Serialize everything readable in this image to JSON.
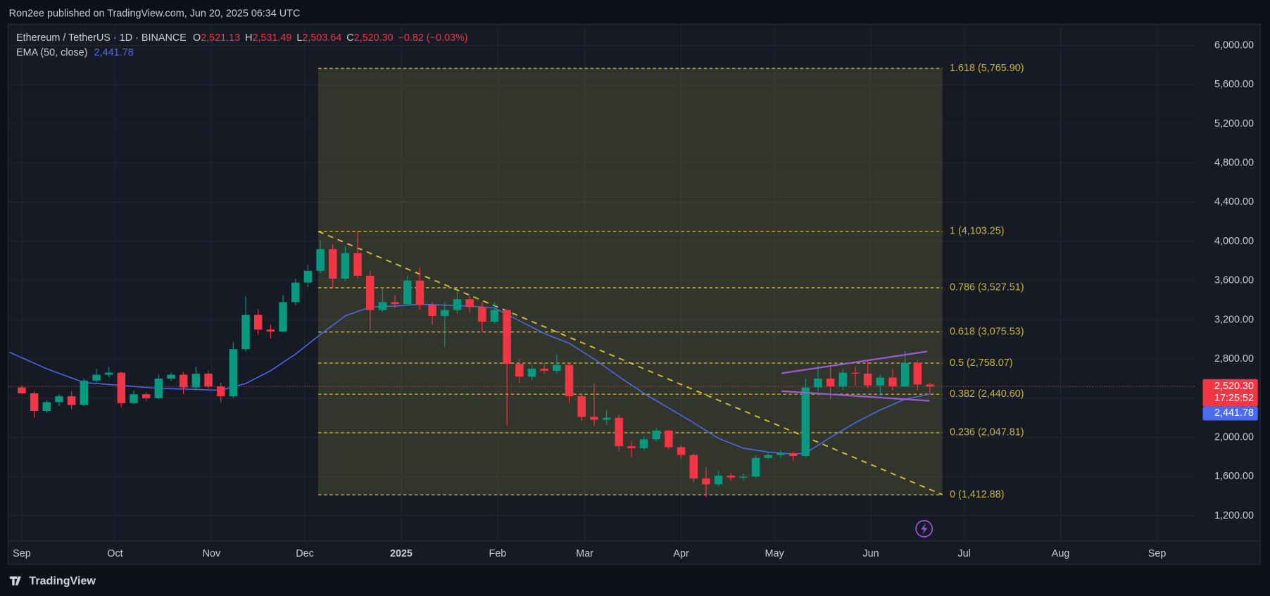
{
  "header": {
    "publisher": "Ron2ee published on TradingView.com, Jun 20, 2025 06:34 UTC",
    "brand": "TradingView"
  },
  "chart_data": {
    "type": "candlestick",
    "legend": {
      "open_label": "O",
      "open": "2,521.13",
      "high_label": "H",
      "high": "2,531.49",
      "low_label": "L",
      "low": "2,503.64",
      "close_label": "C",
      "change": "−0.82 (−0.03%)"
    },
    "xlim": [
      -4.4,
      377.1
    ],
    "xticks": [
      {
        "value": 0,
        "label": "Sep"
      },
      {
        "value": 30,
        "label": "Oct"
      },
      {
        "value": 61,
        "label": "Nov"
      },
      {
        "value": 91,
        "label": "Dec"
      },
      {
        "value": 122,
        "label": "2025"
      },
      {
        "value": 153,
        "label": "Feb"
      },
      {
        "value": 181,
        "label": "Mar"
      },
      {
        "value": 212,
        "label": "Apr"
      },
      {
        "value": 242,
        "label": "May"
      },
      {
        "value": 273,
        "label": "Jun"
      },
      {
        "value": 303,
        "label": "Jul"
      },
      {
        "value": 334,
        "label": "Aug"
      },
      {
        "value": 365,
        "label": "Sep"
      }
    ],
    "ylim": [
      944,
      6215
    ],
    "yticks": [
      {
        "value": 1200,
        "label": "1,200.00"
      },
      {
        "value": 1600,
        "label": "1,600.00"
      },
      {
        "value": 2000,
        "label": "2,000.00"
      },
      {
        "value": 2400,
        "label": "2,400.00"
      },
      {
        "value": 2800,
        "label": "2,800.00"
      },
      {
        "value": 3200,
        "label": "3,200.00"
      },
      {
        "value": 3600,
        "label": "3,600.00"
      },
      {
        "value": 4000,
        "label": "4,000.00"
      },
      {
        "value": 4400,
        "label": "4,400.00"
      },
      {
        "value": 4800,
        "label": "4,800.00"
      },
      {
        "value": 5200,
        "label": "5,200.00"
      },
      {
        "value": 5600,
        "label": "5,600.00"
      },
      {
        "value": 6000,
        "label": "6,000.00"
      }
    ],
    "grid": true,
    "candles": {
      "name": "Ethereum / TetherUS · 1D · BINANCE",
      "up_color": "#089981",
      "down_color": "#f23645",
      "x": [
        0,
        4,
        8,
        12,
        16,
        20,
        24,
        28,
        32,
        36,
        40,
        44,
        48,
        52,
        56,
        60,
        64,
        68,
        72,
        76,
        80,
        84,
        88,
        92,
        96,
        100,
        104,
        108,
        112,
        116,
        120,
        124,
        128,
        132,
        136,
        140,
        144,
        148,
        152,
        156,
        160,
        164,
        168,
        172,
        176,
        180,
        184,
        188,
        192,
        196,
        200,
        204,
        208,
        212,
        216,
        220,
        224,
        228,
        232,
        236,
        240,
        244,
        248,
        252,
        256,
        260,
        264,
        268,
        272,
        276,
        280,
        284,
        288,
        292
      ],
      "open": [
        2510,
        2450,
        2270,
        2360,
        2420,
        2330,
        2580,
        2640,
        2660,
        2350,
        2440,
        2400,
        2600,
        2640,
        2510,
        2650,
        2520,
        2420,
        2900,
        3250,
        3100,
        3080,
        3380,
        3580,
        3700,
        3920,
        3620,
        3880,
        3650,
        3300,
        3380,
        3360,
        3600,
        3350,
        3240,
        3300,
        3410,
        3330,
        3180,
        3300,
        2750,
        2620,
        2700,
        2680,
        2740,
        2420,
        2210,
        2180,
        2200,
        1910,
        1890,
        1980,
        2070,
        1900,
        1820,
        1580,
        1520,
        1610,
        1590,
        1600,
        1790,
        1820,
        1840,
        1810,
        2510,
        2600,
        2520,
        2660,
        2650,
        2530,
        2610,
        2520,
        2760,
        2540
      ],
      "high": [
        2530,
        2470,
        2380,
        2440,
        2470,
        2600,
        2700,
        2720,
        2670,
        2480,
        2460,
        2640,
        2660,
        2670,
        2720,
        2680,
        2560,
        2970,
        3440,
        3310,
        3150,
        3450,
        3620,
        3760,
        4010,
        3970,
        3950,
        4107,
        3700,
        3530,
        3450,
        3650,
        3740,
        3380,
        3380,
        3490,
        3440,
        3380,
        3380,
        3310,
        2800,
        2740,
        2760,
        2850,
        2760,
        2450,
        2550,
        2280,
        2230,
        1960,
        2010,
        2100,
        2080,
        1920,
        1840,
        1690,
        1660,
        1640,
        1630,
        1820,
        1850,
        1870,
        1850,
        2600,
        2740,
        2720,
        2700,
        2720,
        2790,
        2640,
        2700,
        2880,
        2790,
        2560
      ],
      "low": [
        2440,
        2200,
        2250,
        2320,
        2290,
        2320,
        2560,
        2610,
        2310,
        2340,
        2370,
        2390,
        2580,
        2440,
        2480,
        2500,
        2360,
        2400,
        2880,
        3050,
        3010,
        3070,
        3350,
        3530,
        3680,
        3520,
        3600,
        3620,
        3090,
        3280,
        3320,
        3340,
        3300,
        3150,
        2920,
        3260,
        3280,
        3080,
        3160,
        2120,
        2560,
        2580,
        2650,
        2650,
        2350,
        2170,
        2120,
        2130,
        1860,
        1800,
        1870,
        1960,
        1880,
        1780,
        1540,
        1390,
        1500,
        1560,
        1560,
        1580,
        1770,
        1790,
        1760,
        1800,
        2460,
        2390,
        2480,
        2530,
        2500,
        2420,
        2480,
        2510,
        2480,
        2450
      ],
      "close": [
        2450,
        2270,
        2360,
        2420,
        2330,
        2580,
        2640,
        2660,
        2350,
        2440,
        2400,
        2600,
        2640,
        2510,
        2650,
        2520,
        2420,
        2900,
        3250,
        3100,
        3080,
        3380,
        3580,
        3700,
        3920,
        3620,
        3880,
        3650,
        3300,
        3380,
        3360,
        3600,
        3350,
        3240,
        3300,
        3410,
        3330,
        3180,
        3300,
        2750,
        2620,
        2700,
        2680,
        2740,
        2420,
        2210,
        2180,
        2200,
        1910,
        1890,
        1980,
        2070,
        1900,
        1820,
        1580,
        1520,
        1610,
        1590,
        1600,
        1790,
        1820,
        1840,
        1810,
        2510,
        2600,
        2520,
        2660,
        2650,
        2530,
        2610,
        2520,
        2760,
        2540,
        2520
      ]
    },
    "ema": {
      "name": "EMA (50, close)",
      "color": "#4a6cf0",
      "x": [
        -4,
        8,
        20,
        32,
        44,
        56,
        64,
        72,
        80,
        88,
        96,
        104,
        112,
        120,
        128,
        136,
        144,
        152,
        160,
        168,
        176,
        184,
        192,
        200,
        208,
        216,
        224,
        232,
        240,
        248,
        252,
        260,
        268,
        276,
        284,
        292
      ],
      "values": [
        2870,
        2700,
        2560,
        2530,
        2500,
        2490,
        2480,
        2550,
        2680,
        2850,
        3050,
        3240,
        3330,
        3340,
        3360,
        3350,
        3340,
        3320,
        3190,
        3060,
        2960,
        2800,
        2620,
        2450,
        2300,
        2150,
        1990,
        1890,
        1850,
        1830,
        1840,
        2000,
        2150,
        2280,
        2390,
        2441.78
      ],
      "last": {
        "value": 2441.78,
        "label": "2,441.78"
      }
    },
    "last_price": {
      "value": 2520.3,
      "label": "2,520.30"
    },
    "countdown": "17:25:52",
    "fib": {
      "color": "#c9b43a",
      "x": [
        95.3,
        296
      ],
      "levels": [
        {
          "value": 5765.9,
          "label": "1.618 (5,765.90)"
        },
        {
          "value": 4103.25,
          "label": "1 (4,103.25)"
        },
        {
          "value": 3527.51,
          "label": "0.786 (3,527.51)"
        },
        {
          "value": 3075.53,
          "label": "0.618 (3,075.53)"
        },
        {
          "value": 2758.07,
          "label": "0.5 (2,758.07)"
        },
        {
          "value": 2440.6,
          "label": "0.382 (2,440.60)"
        },
        {
          "value": 2047.81,
          "label": "0.236 (2,047.81)"
        },
        {
          "value": 1412.88,
          "label": "0 (1,412.88)"
        }
      ]
    },
    "trendline": {
      "x": [
        95.3,
        296
      ],
      "values": [
        4103,
        1415
      ]
    },
    "channel": {
      "color": "#9b59d6",
      "upper": {
        "x": [
          244.3,
          291.1
        ],
        "values": [
          2654,
          2877
        ]
      },
      "lower": {
        "x": [
          244.3,
          291.9
        ],
        "values": [
          2472,
          2373
        ]
      }
    }
  }
}
